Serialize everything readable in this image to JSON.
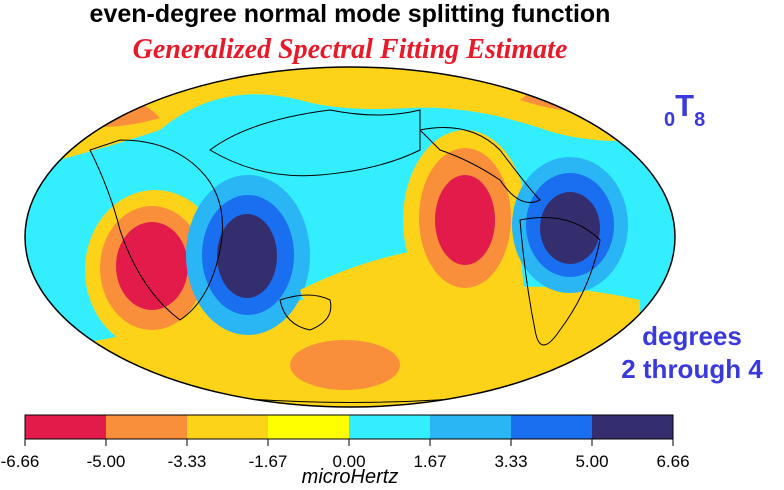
{
  "title": "even-degree normal mode splitting function",
  "subtitle": "Generalized Spectral Fitting Estimate",
  "mode_label": {
    "subscript": "0",
    "letter": "T",
    "index": "8"
  },
  "degrees_line1": "degrees",
  "degrees_line2": "2 through 4",
  "colorbar": {
    "unit": "microHertz",
    "ticks": [
      "-6.66",
      "-5.00",
      "-3.33",
      "-1.67",
      "0.00",
      "1.67",
      "3.33",
      "5.00",
      "6.66"
    ],
    "colors": [
      "#e31b4b",
      "#f98f3b",
      "#fdd31a",
      "#ffff00",
      "#33eeff",
      "#2ab6f5",
      "#1a6ef0",
      "#352e6e"
    ]
  }
}
